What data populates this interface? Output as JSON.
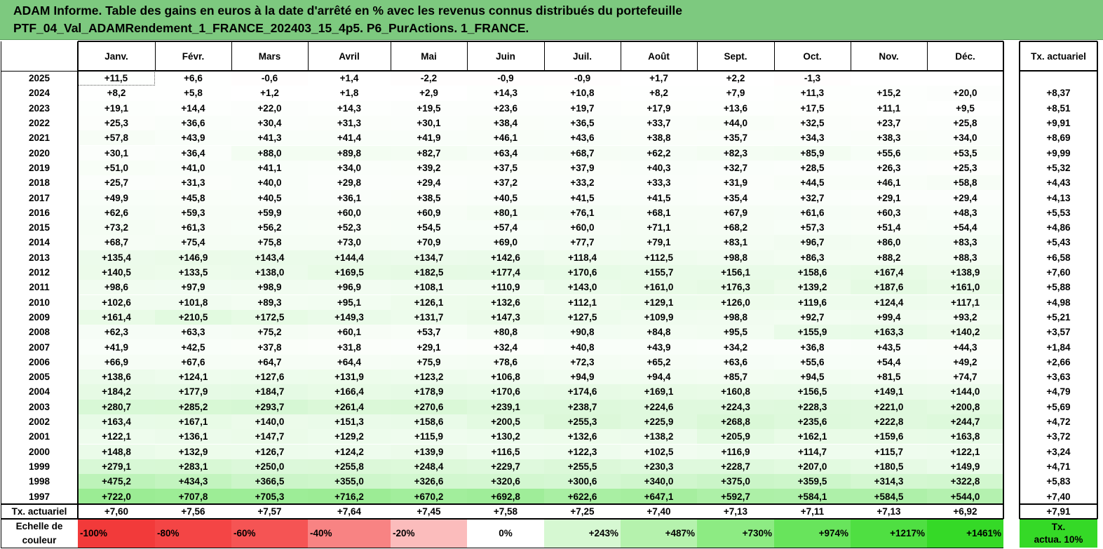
{
  "title": {
    "line1": "ADAM Informe. Table des gains en euros à la date d'arrêté en % avec les revenus connus distribués du portefeuille",
    "line2": "PTF_04_Val_ADAMRendement_1_FRANCE_202403_15_4p5. P6_PurActions. 1_FRANCE."
  },
  "months": [
    "Janv.",
    "Févr.",
    "Mars",
    "Avril",
    "Mai",
    "Juin",
    "Juil.",
    "Août",
    "Sept.",
    "Oct.",
    "Nov.",
    "Déc."
  ],
  "rate_header": "Tx. actuariel",
  "rows": [
    {
      "year": "2025",
      "values": [
        "+11,5",
        "+6,6",
        "-0,6",
        "+1,4",
        "-2,2",
        "-0,9",
        "-0,9",
        "+1,7",
        "+2,2",
        "-1,3",
        "",
        ""
      ],
      "rate": ""
    },
    {
      "year": "2024",
      "values": [
        "+8,2",
        "+5,8",
        "+1,2",
        "+1,8",
        "+2,9",
        "+14,3",
        "+10,8",
        "+8,2",
        "+7,9",
        "+11,3",
        "+15,2",
        "+20,0"
      ],
      "rate": "+8,37"
    },
    {
      "year": "2023",
      "values": [
        "+19,1",
        "+14,4",
        "+22,0",
        "+14,3",
        "+19,5",
        "+23,6",
        "+19,7",
        "+17,9",
        "+13,6",
        "+17,5",
        "+11,1",
        "+9,5"
      ],
      "rate": "+8,51"
    },
    {
      "year": "2022",
      "values": [
        "+25,3",
        "+36,6",
        "+30,4",
        "+31,3",
        "+30,1",
        "+38,4",
        "+36,5",
        "+33,7",
        "+44,0",
        "+32,5",
        "+23,7",
        "+25,8"
      ],
      "rate": "+9,91"
    },
    {
      "year": "2021",
      "values": [
        "+57,8",
        "+43,9",
        "+41,3",
        "+41,4",
        "+41,9",
        "+46,1",
        "+43,6",
        "+38,8",
        "+35,7",
        "+34,3",
        "+38,3",
        "+34,0"
      ],
      "rate": "+8,69"
    },
    {
      "year": "2020",
      "values": [
        "+30,1",
        "+36,4",
        "+88,0",
        "+89,8",
        "+82,7",
        "+63,4",
        "+68,7",
        "+62,2",
        "+82,3",
        "+85,9",
        "+55,6",
        "+53,5"
      ],
      "rate": "+9,99"
    },
    {
      "year": "2019",
      "values": [
        "+51,0",
        "+41,0",
        "+41,1",
        "+34,0",
        "+39,2",
        "+37,5",
        "+37,9",
        "+40,3",
        "+32,7",
        "+28,5",
        "+26,3",
        "+25,3"
      ],
      "rate": "+5,32"
    },
    {
      "year": "2018",
      "values": [
        "+25,7",
        "+31,3",
        "+40,0",
        "+29,8",
        "+29,4",
        "+37,2",
        "+33,2",
        "+33,3",
        "+31,9",
        "+44,5",
        "+46,1",
        "+58,8"
      ],
      "rate": "+4,43"
    },
    {
      "year": "2017",
      "values": [
        "+49,9",
        "+45,8",
        "+40,5",
        "+36,1",
        "+38,5",
        "+40,5",
        "+41,5",
        "+41,5",
        "+35,4",
        "+32,7",
        "+29,1",
        "+29,4"
      ],
      "rate": "+4,13"
    },
    {
      "year": "2016",
      "values": [
        "+62,6",
        "+59,3",
        "+59,9",
        "+60,0",
        "+60,9",
        "+80,1",
        "+76,1",
        "+68,1",
        "+67,9",
        "+61,6",
        "+60,3",
        "+48,3"
      ],
      "rate": "+5,53"
    },
    {
      "year": "2015",
      "values": [
        "+73,2",
        "+61,3",
        "+56,2",
        "+52,3",
        "+54,5",
        "+57,4",
        "+60,0",
        "+71,1",
        "+68,2",
        "+57,3",
        "+51,4",
        "+54,4"
      ],
      "rate": "+4,86"
    },
    {
      "year": "2014",
      "values": [
        "+68,7",
        "+75,4",
        "+75,8",
        "+73,0",
        "+70,9",
        "+69,0",
        "+77,7",
        "+79,1",
        "+83,1",
        "+96,7",
        "+86,0",
        "+83,3"
      ],
      "rate": "+5,43"
    },
    {
      "year": "2013",
      "values": [
        "+135,4",
        "+146,9",
        "+143,4",
        "+144,4",
        "+134,7",
        "+142,6",
        "+118,4",
        "+112,5",
        "+98,8",
        "+86,3",
        "+88,2",
        "+88,3"
      ],
      "rate": "+6,58"
    },
    {
      "year": "2012",
      "values": [
        "+140,5",
        "+133,5",
        "+138,0",
        "+169,5",
        "+182,5",
        "+177,4",
        "+170,6",
        "+155,7",
        "+156,1",
        "+158,6",
        "+167,4",
        "+138,9"
      ],
      "rate": "+7,60"
    },
    {
      "year": "2011",
      "values": [
        "+98,6",
        "+97,9",
        "+98,9",
        "+96,9",
        "+108,1",
        "+110,9",
        "+143,0",
        "+161,0",
        "+176,3",
        "+139,2",
        "+187,6",
        "+161,0"
      ],
      "rate": "+5,88"
    },
    {
      "year": "2010",
      "values": [
        "+102,6",
        "+101,8",
        "+89,3",
        "+95,1",
        "+126,1",
        "+132,6",
        "+112,1",
        "+129,1",
        "+126,0",
        "+119,6",
        "+124,4",
        "+117,1"
      ],
      "rate": "+4,98"
    },
    {
      "year": "2009",
      "values": [
        "+161,4",
        "+210,5",
        "+172,5",
        "+149,3",
        "+131,7",
        "+147,3",
        "+127,5",
        "+109,9",
        "+98,8",
        "+92,7",
        "+99,4",
        "+93,2"
      ],
      "rate": "+5,21"
    },
    {
      "year": "2008",
      "values": [
        "+62,3",
        "+63,3",
        "+75,2",
        "+60,1",
        "+53,7",
        "+80,8",
        "+90,8",
        "+84,8",
        "+95,5",
        "+155,9",
        "+163,3",
        "+140,2"
      ],
      "rate": "+3,57"
    },
    {
      "year": "2007",
      "values": [
        "+41,9",
        "+42,5",
        "+37,8",
        "+31,8",
        "+29,1",
        "+32,4",
        "+40,8",
        "+43,9",
        "+34,2",
        "+36,8",
        "+43,5",
        "+44,3"
      ],
      "rate": "+1,84"
    },
    {
      "year": "2006",
      "values": [
        "+66,9",
        "+67,6",
        "+64,7",
        "+64,4",
        "+75,9",
        "+78,6",
        "+72,3",
        "+65,2",
        "+63,6",
        "+55,6",
        "+54,4",
        "+49,2"
      ],
      "rate": "+2,66"
    },
    {
      "year": "2005",
      "values": [
        "+138,6",
        "+124,1",
        "+127,6",
        "+131,9",
        "+123,2",
        "+106,8",
        "+94,9",
        "+94,4",
        "+85,7",
        "+94,5",
        "+81,5",
        "+74,7"
      ],
      "rate": "+3,63"
    },
    {
      "year": "2004",
      "values": [
        "+184,2",
        "+177,9",
        "+184,7",
        "+166,4",
        "+178,9",
        "+170,6",
        "+174,6",
        "+169,1",
        "+160,8",
        "+156,5",
        "+149,1",
        "+144,0"
      ],
      "rate": "+4,79"
    },
    {
      "year": "2003",
      "values": [
        "+280,7",
        "+285,2",
        "+293,7",
        "+261,4",
        "+270,6",
        "+239,1",
        "+238,7",
        "+224,6",
        "+224,3",
        "+228,3",
        "+221,0",
        "+200,8"
      ],
      "rate": "+5,69"
    },
    {
      "year": "2002",
      "values": [
        "+163,4",
        "+167,1",
        "+140,0",
        "+151,3",
        "+158,6",
        "+200,5",
        "+255,3",
        "+225,9",
        "+268,8",
        "+235,6",
        "+222,8",
        "+244,7"
      ],
      "rate": "+4,72"
    },
    {
      "year": "2001",
      "values": [
        "+122,1",
        "+136,1",
        "+147,7",
        "+129,2",
        "+115,9",
        "+130,2",
        "+132,6",
        "+138,2",
        "+205,9",
        "+162,1",
        "+159,6",
        "+163,8"
      ],
      "rate": "+3,72"
    },
    {
      "year": "2000",
      "values": [
        "+148,8",
        "+132,9",
        "+126,7",
        "+124,2",
        "+139,9",
        "+116,5",
        "+122,3",
        "+102,5",
        "+116,9",
        "+114,7",
        "+115,7",
        "+122,1"
      ],
      "rate": "+3,24"
    },
    {
      "year": "1999",
      "values": [
        "+279,1",
        "+283,1",
        "+250,0",
        "+255,8",
        "+248,4",
        "+229,7",
        "+255,5",
        "+230,3",
        "+228,7",
        "+207,0",
        "+180,5",
        "+149,9"
      ],
      "rate": "+4,71"
    },
    {
      "year": "1998",
      "values": [
        "+475,2",
        "+434,3",
        "+366,5",
        "+355,0",
        "+326,6",
        "+320,6",
        "+300,6",
        "+340,0",
        "+375,0",
        "+359,5",
        "+314,3",
        "+322,8"
      ],
      "rate": "+5,83"
    },
    {
      "year": "1997",
      "values": [
        "+722,0",
        "+707,8",
        "+705,3",
        "+716,2",
        "+670,2",
        "+692,8",
        "+622,6",
        "+647,1",
        "+592,7",
        "+584,1",
        "+584,5",
        "+544,0"
      ],
      "rate": "+7,40"
    }
  ],
  "summary_row": {
    "label": "Tx. actuariel",
    "values": [
      "+7,60",
      "+7,56",
      "+7,57",
      "+7,64",
      "+7,45",
      "+7,58",
      "+7,25",
      "+7,40",
      "+7,13",
      "+7,11",
      "+7,13",
      "+6,92"
    ],
    "rate": "+7,91"
  },
  "color_scale": {
    "label_line1": "Echelle de",
    "label_line2": "couleur",
    "steps": [
      {
        "label": "-100%",
        "color": "#f23a3a"
      },
      {
        "label": "-80%",
        "color": "#f44545"
      },
      {
        "label": "-60%",
        "color": "#f55454"
      },
      {
        "label": "-40%",
        "color": "#f88383"
      },
      {
        "label": "-20%",
        "color": "#fbbcbc"
      },
      {
        "label": "0%",
        "color": "#ffffff"
      },
      {
        "label": "+243%",
        "color": "#d6f8d2"
      },
      {
        "label": "+487%",
        "color": "#b5f2ad"
      },
      {
        "label": "+730%",
        "color": "#8deb83"
      },
      {
        "label": "+974%",
        "color": "#68e45c"
      },
      {
        "label": "+1217%",
        "color": "#4fdf42"
      },
      {
        "label": "+1461%",
        "color": "#35d927"
      }
    ],
    "rate_label_line1": "Tx.",
    "rate_label_line2": "actua. 10%",
    "rate_color": "#35d927"
  },
  "colors": {
    "header_bg": "#7dc97f",
    "neg_light": "#fdeeee",
    "pos_scale_max": 1461
  }
}
